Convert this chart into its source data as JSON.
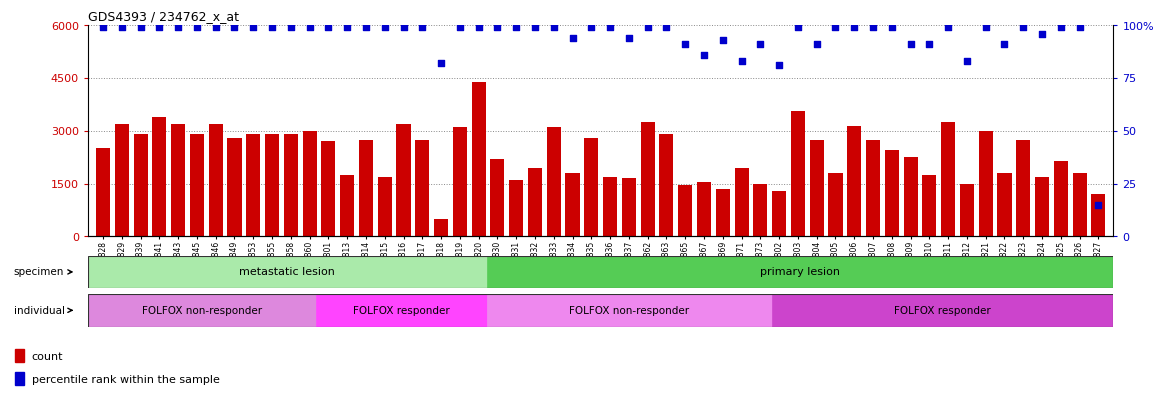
{
  "title": "GDS4393 / 234762_x_at",
  "categories": [
    "GSM710828",
    "GSM710829",
    "GSM710839",
    "GSM710841",
    "GSM710843",
    "GSM710845",
    "GSM710846",
    "GSM710849",
    "GSM710853",
    "GSM710855",
    "GSM710858",
    "GSM710860",
    "GSM710801",
    "GSM710813",
    "GSM710814",
    "GSM710815",
    "GSM710816",
    "GSM710817",
    "GSM710818",
    "GSM710819",
    "GSM710820",
    "GSM710830",
    "GSM710831",
    "GSM710832",
    "GSM710833",
    "GSM710834",
    "GSM710835",
    "GSM710836",
    "GSM710837",
    "GSM710862",
    "GSM710863",
    "GSM710865",
    "GSM710867",
    "GSM710869",
    "GSM710871",
    "GSM710873",
    "GSM710802",
    "GSM710803",
    "GSM710804",
    "GSM710805",
    "GSM710806",
    "GSM710807",
    "GSM710808",
    "GSM710809",
    "GSM710810",
    "GSM710811",
    "GSM710812",
    "GSM710821",
    "GSM710822",
    "GSM710823",
    "GSM710824",
    "GSM710825",
    "GSM710826",
    "GSM710827"
  ],
  "bar_values": [
    2500,
    3200,
    2900,
    3400,
    3200,
    2900,
    3200,
    2800,
    2900,
    2900,
    2900,
    3000,
    2700,
    1750,
    2750,
    1700,
    3200,
    2750,
    500,
    3100,
    4400,
    2200,
    1600,
    1950,
    3100,
    1800,
    2800,
    1700,
    1650,
    3250,
    2900,
    1450,
    1550,
    1350,
    1950,
    1500,
    1300,
    3550,
    2750,
    1800,
    3150,
    2750,
    2450,
    2250,
    1750,
    3250,
    1500,
    3000,
    1800,
    2750,
    1700,
    2150,
    1800,
    1200
  ],
  "percentile_values": [
    99,
    99,
    99,
    99,
    99,
    99,
    99,
    99,
    99,
    99,
    99,
    99,
    99,
    99,
    99,
    99,
    99,
    99,
    82,
    99,
    99,
    99,
    99,
    99,
    99,
    94,
    99,
    99,
    94,
    99,
    99,
    91,
    86,
    93,
    83,
    91,
    81,
    99,
    91,
    99,
    99,
    99,
    99,
    91,
    91,
    99,
    83,
    99,
    91,
    99,
    96,
    99,
    99,
    15
  ],
  "ylim_left": [
    0,
    6000
  ],
  "ylim_right": [
    0,
    100
  ],
  "yticks_left": [
    0,
    1500,
    3000,
    4500,
    6000
  ],
  "yticks_right": [
    0,
    25,
    50,
    75,
    100
  ],
  "bar_color": "#cc0000",
  "dot_color": "#0000cc",
  "specimen_groups": [
    {
      "label": "metastatic lesion",
      "start": 0,
      "end": 21,
      "color": "#aaeaaa"
    },
    {
      "label": "primary lesion",
      "start": 21,
      "end": 54,
      "color": "#55cc55"
    }
  ],
  "individual_groups": [
    {
      "label": "FOLFOX non-responder",
      "start": 0,
      "end": 12,
      "color": "#dd88dd"
    },
    {
      "label": "FOLFOX responder",
      "start": 12,
      "end": 21,
      "color": "#ff44ff"
    },
    {
      "label": "FOLFOX non-responder",
      "start": 21,
      "end": 36,
      "color": "#ee88ee"
    },
    {
      "label": "FOLFOX responder",
      "start": 36,
      "end": 54,
      "color": "#cc44cc"
    }
  ]
}
